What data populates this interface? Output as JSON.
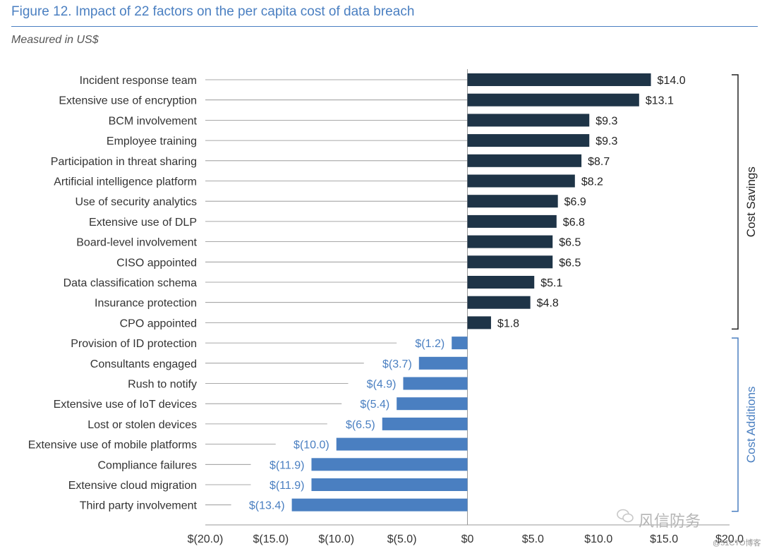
{
  "figure": {
    "title": "Figure 12. Impact of 22 factors on the per capita cost of data breach",
    "subtitle": "Measured in US$"
  },
  "colors": {
    "savings_bar": "#1e3447",
    "additions_bar": "#4a7fc1",
    "savings_label": "#222222",
    "additions_label": "#4a7fc1",
    "title": "#4a7fc1"
  },
  "chart_data": {
    "type": "bar",
    "orientation": "horizontal",
    "title": "Figure 12. Impact of 22 factors on the per capita cost of data breach",
    "subtitle": "Measured in US$",
    "xlabel": "",
    "ylabel": "",
    "xlim": [
      -20,
      20
    ],
    "x_ticks": [
      -20,
      -15,
      -10,
      -5,
      0,
      5,
      10,
      15,
      20
    ],
    "x_tick_labels": [
      "$(20.0)",
      "$(15.0)",
      "$(10.0)",
      "$(5.0)",
      "$0",
      "$5.0",
      "$10.0",
      "$15.0",
      "$20.0"
    ],
    "grid": false,
    "categories": [
      "Incident response team",
      "Extensive use of encryption",
      "BCM involvement",
      "Employee training",
      "Participation in threat sharing",
      "Artificial intelligence platform",
      "Use of security analytics",
      "Extensive use of DLP",
      "Board-level involvement",
      "CISO appointed",
      "Data classification schema",
      "Insurance protection",
      "CPO appointed",
      "Provision of ID protection",
      "Consultants engaged",
      "Rush to notify",
      "Extensive use of IoT devices",
      "Lost or stolen devices",
      "Extensive use of mobile platforms",
      "Compliance failures",
      "Extensive cloud migration",
      "Third party involvement"
    ],
    "values": [
      14.0,
      13.1,
      9.3,
      9.3,
      8.7,
      8.2,
      6.9,
      6.8,
      6.5,
      6.5,
      5.1,
      4.8,
      1.8,
      -1.2,
      -3.7,
      -4.9,
      -5.4,
      -6.5,
      -10.0,
      -11.9,
      -11.9,
      -13.4
    ],
    "value_labels": [
      "$14.0",
      "$13.1",
      "$9.3",
      "$9.3",
      "$8.7",
      "$8.2",
      "$6.9",
      "$6.8",
      "$6.5",
      "$6.5",
      "$5.1",
      "$4.8",
      "$1.8",
      "$(1.2)",
      "$(3.7)",
      "$(4.9)",
      "$(5.4)",
      "$(6.5)",
      "$(10.0)",
      "$(11.9)",
      "$(11.9)",
      "$(13.4)"
    ],
    "groups": [
      {
        "name": "Cost Savings",
        "start": 0,
        "end": 12
      },
      {
        "name": "Cost Additions",
        "start": 13,
        "end": 21
      }
    ]
  },
  "watermark": {
    "text": "风信防务",
    "credit": "@51CTO博客"
  }
}
